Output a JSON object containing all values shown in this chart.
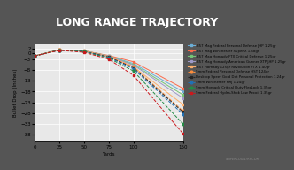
{
  "title": "LONG RANGE TRAJECTORY",
  "xlabel": "Yards",
  "ylabel": "Bullet Drop (Inches)",
  "title_bg": "#555555",
  "title_color": "#ffffff",
  "plot_bg": "#e8e8e8",
  "subtitle_bar": "#c0392b",
  "xlim": [
    0,
    150
  ],
  "ylim": [
    -41,
    4
  ],
  "xticks": [
    0,
    25,
    50,
    75,
    100,
    150
  ],
  "yticks": [
    2,
    0,
    -3,
    -8,
    -13,
    -18,
    -23,
    -28,
    -33,
    -38
  ],
  "watermark": "SNIPERCOUNTRY.COM",
  "series": [
    {
      "label": ".357 Mag Federal Personal Defense JHP 1.25gr",
      "color": "#6baed6",
      "style": "-",
      "marker": "s",
      "points": [
        [
          0,
          -1.5
        ],
        [
          25,
          1.3
        ],
        [
          50,
          0.8
        ],
        [
          75,
          -1.5
        ],
        [
          100,
          -5.0
        ],
        [
          150,
          -18.0
        ]
      ]
    },
    {
      "label": ".357 Mag Winchester Super-X 1.58gr",
      "color": "#fb6a4a",
      "style": "-",
      "marker": "s",
      "points": [
        [
          0,
          -1.5
        ],
        [
          25,
          1.3
        ],
        [
          50,
          0.9
        ],
        [
          75,
          -1.3
        ],
        [
          100,
          -4.2
        ],
        [
          150,
          -16.5
        ]
      ]
    },
    {
      "label": ".357 Mag Hornady FTX Critical Defense 1.25gr",
      "color": "#74c476",
      "style": "-",
      "marker": "s",
      "points": [
        [
          0,
          -1.5
        ],
        [
          25,
          1.3
        ],
        [
          50,
          0.9
        ],
        [
          75,
          -1.5
        ],
        [
          100,
          -5.5
        ],
        [
          150,
          -19.5
        ]
      ]
    },
    {
      "label": ".357 Mag Hornady American Gunner XTP JHP 1.25gr",
      "color": "#9e9ac8",
      "style": "-",
      "marker": "s",
      "points": [
        [
          0,
          -1.5
        ],
        [
          25,
          1.3
        ],
        [
          50,
          0.9
        ],
        [
          75,
          -1.6
        ],
        [
          100,
          -5.8
        ],
        [
          150,
          -21.0
        ]
      ]
    },
    {
      "label": ".357 Hornady 125gr Revolution FTX 1.40gr",
      "color": "#fdae6b",
      "style": "-",
      "marker": "s",
      "points": [
        [
          0,
          -1.5
        ],
        [
          25,
          1.3
        ],
        [
          50,
          0.9
        ],
        [
          75,
          -1.8
        ],
        [
          100,
          -6.5
        ],
        [
          150,
          -24.0
        ]
      ]
    },
    {
      "label": "9mm Federal Personal Defense HST 124gr",
      "color": "#fd8d3c",
      "style": "--",
      "marker": "o",
      "points": [
        [
          0,
          -1.5
        ],
        [
          25,
          1.3
        ],
        [
          50,
          0.7
        ],
        [
          75,
          -1.8
        ],
        [
          100,
          -6.5
        ],
        [
          150,
          -27.0
        ]
      ]
    },
    {
      "label": "Desktop Speer Gold Dot Personal Protection 1.24gr",
      "color": "#252525",
      "style": "--",
      "marker": "s",
      "points": [
        [
          0,
          -1.5
        ],
        [
          25,
          1.2
        ],
        [
          50,
          0.7
        ],
        [
          75,
          -2.0
        ],
        [
          100,
          -7.0
        ],
        [
          150,
          -27.5
        ]
      ]
    },
    {
      "label": "9mm Winchester FMJ 1.24gr",
      "color": "#2171b5",
      "style": "--",
      "marker": "o",
      "points": [
        [
          0,
          -1.5
        ],
        [
          25,
          1.2
        ],
        [
          50,
          0.6
        ],
        [
          75,
          -2.2
        ],
        [
          100,
          -7.5
        ],
        [
          150,
          -28.5
        ]
      ]
    },
    {
      "label": "9mm Hornady Critical Duty FlexLock 1.35gr",
      "color": "#238b45",
      "style": "--",
      "marker": "o",
      "points": [
        [
          0,
          -1.5
        ],
        [
          25,
          1.2
        ],
        [
          50,
          0.5
        ],
        [
          75,
          -2.5
        ],
        [
          100,
          -8.5
        ],
        [
          150,
          -33.0
        ]
      ]
    },
    {
      "label": "9mm Federal Hydra-Shok Low Recoil 1.35gr",
      "color": "#cb181d",
      "style": "--",
      "marker": "s",
      "points": [
        [
          0,
          -1.5
        ],
        [
          25,
          1.1
        ],
        [
          50,
          0.2
        ],
        [
          75,
          -3.0
        ],
        [
          100,
          -10.5
        ],
        [
          150,
          -37.5
        ]
      ]
    }
  ]
}
